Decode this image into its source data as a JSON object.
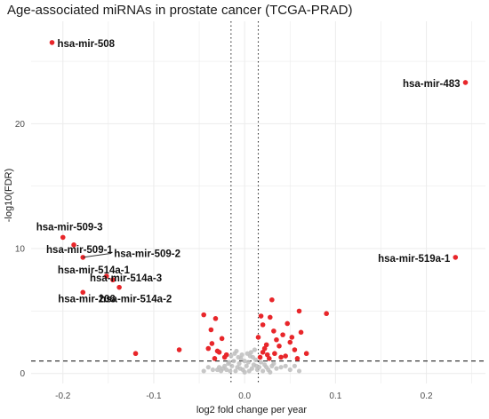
{
  "chart_data": {
    "type": "scatter",
    "title": "Age-associated miRNAs in prostate cancer (TCGA-PRAD)",
    "xlabel": "log2 fold change per year",
    "ylabel": "-log10(FDR)",
    "xlim": [
      -0.235,
      0.265
    ],
    "ylim": [
      -0.8,
      28.2
    ],
    "x_ticks": [
      -0.2,
      -0.1,
      0.0,
      0.1,
      0.2
    ],
    "x_tick_labels": [
      "-0.2",
      "-0.1",
      "0.0",
      "0.1",
      "0.2"
    ],
    "y_ticks": [
      0,
      10,
      20
    ],
    "y_tick_labels": [
      "0",
      "10",
      "20"
    ],
    "grid": true,
    "vlines": [
      -0.015,
      0.015
    ],
    "hline": 1.0,
    "colors": {
      "significant": "#e8262a",
      "non_significant": "#bdbdbd",
      "label_line": "#333333"
    },
    "labeled_points": [
      {
        "label": "hsa-mir-508",
        "x": -0.212,
        "y": 26.5
      },
      {
        "label": "hsa-mir-483",
        "x": 0.243,
        "y": 23.3
      },
      {
        "label": "hsa-mir-509-3",
        "x": -0.2,
        "y": 10.9
      },
      {
        "label": "hsa-mir-509-1",
        "x": -0.188,
        "y": 10.3
      },
      {
        "label": "hsa-mir-509-2",
        "x": -0.178,
        "y": 9.3
      },
      {
        "label": "hsa-mir-514a-1",
        "x": -0.152,
        "y": 7.8
      },
      {
        "label": "hsa-mir-514a-3",
        "x": -0.145,
        "y": 7.5
      },
      {
        "label": "hsa-mir-514a-2",
        "x": -0.138,
        "y": 6.9
      },
      {
        "label": "hsa-mir-206",
        "x": -0.178,
        "y": 6.5
      },
      {
        "label": "hsa-mir-519a-1",
        "x": 0.232,
        "y": 9.3
      }
    ],
    "significant_points": [
      [
        -0.12,
        1.6
      ],
      [
        -0.072,
        1.9
      ],
      [
        -0.045,
        4.7
      ],
      [
        -0.04,
        2.0
      ],
      [
        -0.037,
        3.5
      ],
      [
        -0.03,
        1.8
      ],
      [
        -0.025,
        2.8
      ],
      [
        -0.022,
        1.3
      ],
      [
        -0.032,
        4.4
      ],
      [
        -0.028,
        1.7
      ],
      [
        0.015,
        2.9
      ],
      [
        0.018,
        4.6
      ],
      [
        0.02,
        3.9
      ],
      [
        0.022,
        2.0
      ],
      [
        0.025,
        1.5
      ],
      [
        0.03,
        5.9
      ],
      [
        0.032,
        3.4
      ],
      [
        0.035,
        2.7
      ],
      [
        0.028,
        4.5
      ],
      [
        0.038,
        2.2
      ],
      [
        0.042,
        3.1
      ],
      [
        0.045,
        1.4
      ],
      [
        0.047,
        4.0
      ],
      [
        0.05,
        2.5
      ],
      [
        0.052,
        2.9
      ],
      [
        0.055,
        1.9
      ],
      [
        0.06,
        5.0
      ],
      [
        0.062,
        3.3
      ],
      [
        0.068,
        1.6
      ],
      [
        0.09,
        4.8
      ],
      [
        0.017,
        1.3
      ],
      [
        0.02,
        1.7
      ],
      [
        0.024,
        2.3
      ],
      [
        0.027,
        1.2
      ],
      [
        0.033,
        1.6
      ],
      [
        0.04,
        1.3
      ],
      [
        -0.02,
        1.5
      ],
      [
        -0.033,
        1.2
      ],
      [
        -0.036,
        2.4
      ],
      [
        0.058,
        1.2
      ]
    ],
    "nonsignificant_points": [
      [
        -0.01,
        0.2
      ],
      [
        -0.008,
        0.5
      ],
      [
        -0.006,
        0.8
      ],
      [
        -0.004,
        1.2
      ],
      [
        -0.002,
        0.3
      ],
      [
        0.0,
        0.1
      ],
      [
        0.002,
        0.6
      ],
      [
        0.004,
        0.9
      ],
      [
        0.006,
        1.4
      ],
      [
        0.008,
        0.4
      ],
      [
        0.01,
        0.7
      ],
      [
        -0.012,
        1.0
      ],
      [
        -0.014,
        0.6
      ],
      [
        0.012,
        1.1
      ],
      [
        0.014,
        0.3
      ],
      [
        -0.016,
        0.2
      ],
      [
        0.016,
        0.5
      ],
      [
        -0.018,
        0.8
      ],
      [
        0.018,
        0.9
      ],
      [
        -0.02,
        0.3
      ],
      [
        0.02,
        0.2
      ],
      [
        -0.022,
        0.6
      ],
      [
        0.022,
        0.7
      ],
      [
        -0.024,
        0.4
      ],
      [
        0.024,
        0.5
      ],
      [
        -0.026,
        0.2
      ],
      [
        0.026,
        0.3
      ],
      [
        -0.028,
        0.5
      ],
      [
        0.028,
        0.1
      ],
      [
        -0.03,
        0.3
      ],
      [
        0.03,
        0.6
      ],
      [
        -0.003,
        1.5
      ],
      [
        0.003,
        1.6
      ],
      [
        -0.007,
        1.3
      ],
      [
        0.007,
        1.7
      ],
      [
        -0.009,
        1.8
      ],
      [
        0.009,
        1.3
      ],
      [
        -0.011,
        1.6
      ],
      [
        0.011,
        1.9
      ],
      [
        0.0,
        1.0
      ],
      [
        0.035,
        0.4
      ],
      [
        0.04,
        0.5
      ],
      [
        0.045,
        0.6
      ],
      [
        -0.035,
        0.3
      ],
      [
        -0.04,
        0.5
      ],
      [
        0.05,
        0.3
      ],
      [
        0.055,
        0.6
      ],
      [
        0.06,
        0.2
      ],
      [
        -0.045,
        0.2
      ],
      [
        0.032,
        0.8
      ],
      [
        -0.005,
        0.4
      ],
      [
        0.005,
        0.2
      ],
      [
        -0.015,
        1.4
      ],
      [
        0.013,
        0.6
      ],
      [
        -0.017,
        0.9
      ]
    ]
  }
}
